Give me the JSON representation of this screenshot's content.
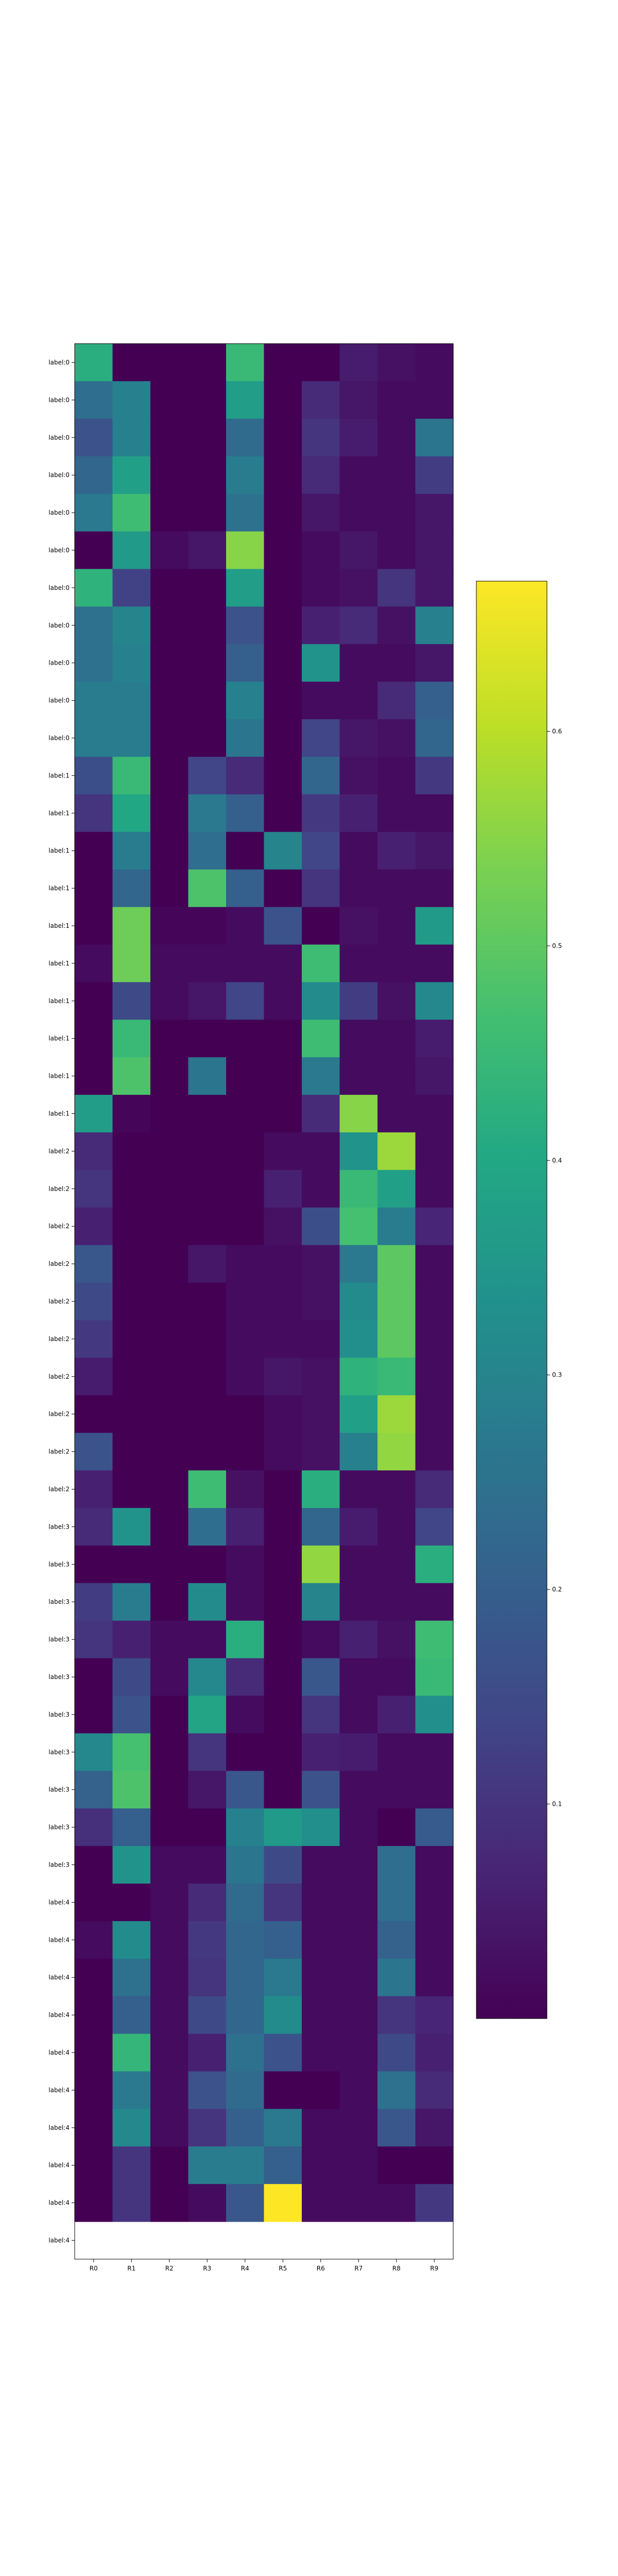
{
  "chart_data": {
    "type": "heatmap",
    "title": "",
    "xlabel": "",
    "ylabel": "",
    "colormap": "viridis",
    "x": [
      "R0",
      "R1",
      "R2",
      "R3",
      "R4",
      "R5",
      "R6",
      "R7",
      "R8",
      "R9"
    ],
    "y": [
      "label:0",
      "label:0",
      "label:0",
      "label:0",
      "label:0",
      "label:0",
      "label:0",
      "label:0",
      "label:0",
      "label:0",
      "label:0",
      "label:1",
      "label:1",
      "label:1",
      "label:1",
      "label:1",
      "label:1",
      "label:1",
      "label:1",
      "label:1",
      "label:1",
      "label:2",
      "label:2",
      "label:2",
      "label:2",
      "label:2",
      "label:2",
      "label:2",
      "label:2",
      "label:2",
      "label:2",
      "label:3",
      "label:3",
      "label:3",
      "label:3",
      "label:3",
      "label:3",
      "label:3",
      "label:3",
      "label:3",
      "label:3",
      "label:4",
      "label:4",
      "label:4",
      "label:4",
      "label:4",
      "label:4",
      "label:4",
      "label:4",
      "label:4",
      "label:4"
    ],
    "values": [
      [
        0.42,
        0.0,
        0.0,
        0.0,
        0.45,
        0.0,
        0.0,
        0.05,
        0.03,
        0.02
      ],
      [
        0.24,
        0.29,
        0.0,
        0.0,
        0.37,
        0.0,
        0.08,
        0.04,
        0.02,
        0.02
      ],
      [
        0.17,
        0.29,
        0.0,
        0.0,
        0.23,
        0.0,
        0.1,
        0.05,
        0.02,
        0.26
      ],
      [
        0.22,
        0.38,
        0.0,
        0.0,
        0.28,
        0.0,
        0.08,
        0.02,
        0.02,
        0.12
      ],
      [
        0.27,
        0.46,
        0.0,
        0.0,
        0.25,
        0.0,
        0.04,
        0.02,
        0.02,
        0.04
      ],
      [
        0.0,
        0.36,
        0.02,
        0.04,
        0.55,
        0.0,
        0.02,
        0.04,
        0.02,
        0.04
      ],
      [
        0.43,
        0.13,
        0.0,
        0.0,
        0.37,
        0.0,
        0.02,
        0.03,
        0.1,
        0.04
      ],
      [
        0.25,
        0.3,
        0.0,
        0.0,
        0.17,
        0.0,
        0.06,
        0.08,
        0.03,
        0.29
      ],
      [
        0.25,
        0.29,
        0.0,
        0.0,
        0.2,
        0.0,
        0.34,
        0.02,
        0.02,
        0.04
      ],
      [
        0.28,
        0.28,
        0.0,
        0.0,
        0.29,
        0.0,
        0.02,
        0.02,
        0.08,
        0.2
      ],
      [
        0.28,
        0.28,
        0.0,
        0.0,
        0.26,
        0.0,
        0.14,
        0.04,
        0.03,
        0.22
      ],
      [
        0.16,
        0.45,
        0.0,
        0.14,
        0.08,
        0.0,
        0.22,
        0.03,
        0.02,
        0.11
      ],
      [
        0.1,
        0.4,
        0.0,
        0.27,
        0.2,
        0.0,
        0.11,
        0.06,
        0.02,
        0.02
      ],
      [
        0.0,
        0.28,
        0.0,
        0.24,
        0.0,
        0.3,
        0.14,
        0.02,
        0.06,
        0.04
      ],
      [
        0.0,
        0.22,
        0.0,
        0.48,
        0.2,
        0.0,
        0.1,
        0.02,
        0.02,
        0.02
      ],
      [
        0.0,
        0.52,
        0.01,
        0.01,
        0.02,
        0.17,
        0.0,
        0.03,
        0.02,
        0.36
      ],
      [
        0.02,
        0.52,
        0.02,
        0.02,
        0.02,
        0.02,
        0.46,
        0.02,
        0.02,
        0.02
      ],
      [
        0.0,
        0.15,
        0.02,
        0.04,
        0.14,
        0.02,
        0.32,
        0.12,
        0.03,
        0.31
      ],
      [
        0.0,
        0.45,
        0.0,
        0.0,
        0.0,
        0.0,
        0.46,
        0.02,
        0.02,
        0.05
      ],
      [
        0.0,
        0.48,
        0.0,
        0.26,
        0.0,
        0.0,
        0.27,
        0.02,
        0.02,
        0.04
      ],
      [
        0.37,
        0.01,
        0.0,
        0.0,
        0.0,
        0.0,
        0.08,
        0.55,
        0.02,
        0.02
      ],
      [
        0.08,
        0.0,
        0.0,
        0.0,
        0.0,
        0.02,
        0.02,
        0.34,
        0.57,
        0.02
      ],
      [
        0.1,
        0.0,
        0.0,
        0.0,
        0.0,
        0.06,
        0.02,
        0.45,
        0.38,
        0.02
      ],
      [
        0.06,
        0.0,
        0.0,
        0.0,
        0.0,
        0.03,
        0.16,
        0.47,
        0.28,
        0.07
      ],
      [
        0.18,
        0.0,
        0.0,
        0.04,
        0.02,
        0.02,
        0.03,
        0.27,
        0.5,
        0.02
      ],
      [
        0.15,
        0.0,
        0.0,
        0.0,
        0.02,
        0.02,
        0.03,
        0.32,
        0.5,
        0.02
      ],
      [
        0.11,
        0.0,
        0.0,
        0.0,
        0.02,
        0.02,
        0.02,
        0.33,
        0.5,
        0.02
      ],
      [
        0.05,
        0.0,
        0.0,
        0.0,
        0.02,
        0.04,
        0.03,
        0.43,
        0.45,
        0.02
      ],
      [
        0.0,
        0.0,
        0.0,
        0.0,
        0.0,
        0.02,
        0.03,
        0.38,
        0.57,
        0.02
      ],
      [
        0.17,
        0.0,
        0.0,
        0.0,
        0.0,
        0.02,
        0.03,
        0.29,
        0.56,
        0.02
      ],
      [
        0.06,
        0.0,
        0.0,
        0.46,
        0.03,
        0.0,
        0.42,
        0.02,
        0.02,
        0.08
      ],
      [
        0.08,
        0.34,
        0.0,
        0.24,
        0.06,
        0.0,
        0.22,
        0.05,
        0.02,
        0.14
      ],
      [
        0.0,
        0.0,
        0.0,
        0.0,
        0.02,
        0.0,
        0.56,
        0.02,
        0.02,
        0.42
      ],
      [
        0.12,
        0.28,
        0.0,
        0.32,
        0.02,
        0.0,
        0.3,
        0.02,
        0.02,
        0.02
      ],
      [
        0.1,
        0.06,
        0.02,
        0.02,
        0.42,
        0.0,
        0.02,
        0.06,
        0.03,
        0.46
      ],
      [
        0.0,
        0.15,
        0.02,
        0.31,
        0.08,
        0.0,
        0.18,
        0.02,
        0.02,
        0.45
      ],
      [
        0.0,
        0.17,
        0.0,
        0.39,
        0.02,
        0.0,
        0.1,
        0.02,
        0.06,
        0.33
      ],
      [
        0.31,
        0.47,
        0.0,
        0.1,
        0.0,
        0.0,
        0.06,
        0.05,
        0.02,
        0.02
      ],
      [
        0.21,
        0.48,
        0.0,
        0.04,
        0.18,
        0.0,
        0.17,
        0.02,
        0.02,
        0.02
      ],
      [
        0.09,
        0.2,
        0.0,
        0.0,
        0.29,
        0.36,
        0.33,
        0.02,
        0.0,
        0.19
      ],
      [
        0.0,
        0.34,
        0.02,
        0.02,
        0.26,
        0.15,
        0.02,
        0.02,
        0.24,
        0.02
      ],
      [
        0.0,
        0.0,
        0.02,
        0.08,
        0.23,
        0.1,
        0.02,
        0.02,
        0.24,
        0.02
      ],
      [
        0.02,
        0.32,
        0.02,
        0.11,
        0.22,
        0.2,
        0.02,
        0.02,
        0.21,
        0.02
      ],
      [
        0.0,
        0.25,
        0.02,
        0.1,
        0.22,
        0.27,
        0.02,
        0.02,
        0.26,
        0.02
      ],
      [
        0.0,
        0.2,
        0.02,
        0.15,
        0.22,
        0.32,
        0.02,
        0.02,
        0.1,
        0.07
      ],
      [
        0.0,
        0.44,
        0.02,
        0.06,
        0.25,
        0.17,
        0.02,
        0.02,
        0.15,
        0.06
      ],
      [
        0.0,
        0.27,
        0.02,
        0.17,
        0.23,
        0.0,
        0.0,
        0.02,
        0.25,
        0.08
      ],
      [
        0.0,
        0.31,
        0.02,
        0.1,
        0.2,
        0.27,
        0.02,
        0.02,
        0.18,
        0.04
      ],
      [
        0.0,
        0.1,
        0.0,
        0.28,
        0.28,
        0.2,
        0.02,
        0.02,
        0.0,
        0.0
      ],
      [
        0.0,
        0.1,
        0.0,
        0.02,
        0.18,
        0.67,
        0.02,
        0.02,
        0.02,
        0.11
      ]
    ],
    "colorbar": {
      "min": 0.0,
      "max": 0.67,
      "ticks": [
        0.1,
        0.2,
        0.3,
        0.4,
        0.5,
        0.6
      ],
      "tick_labels": [
        "0.1",
        "0.2",
        "0.3",
        "0.4",
        "0.5",
        "0.6"
      ]
    },
    "grid": false,
    "legend": "none"
  }
}
